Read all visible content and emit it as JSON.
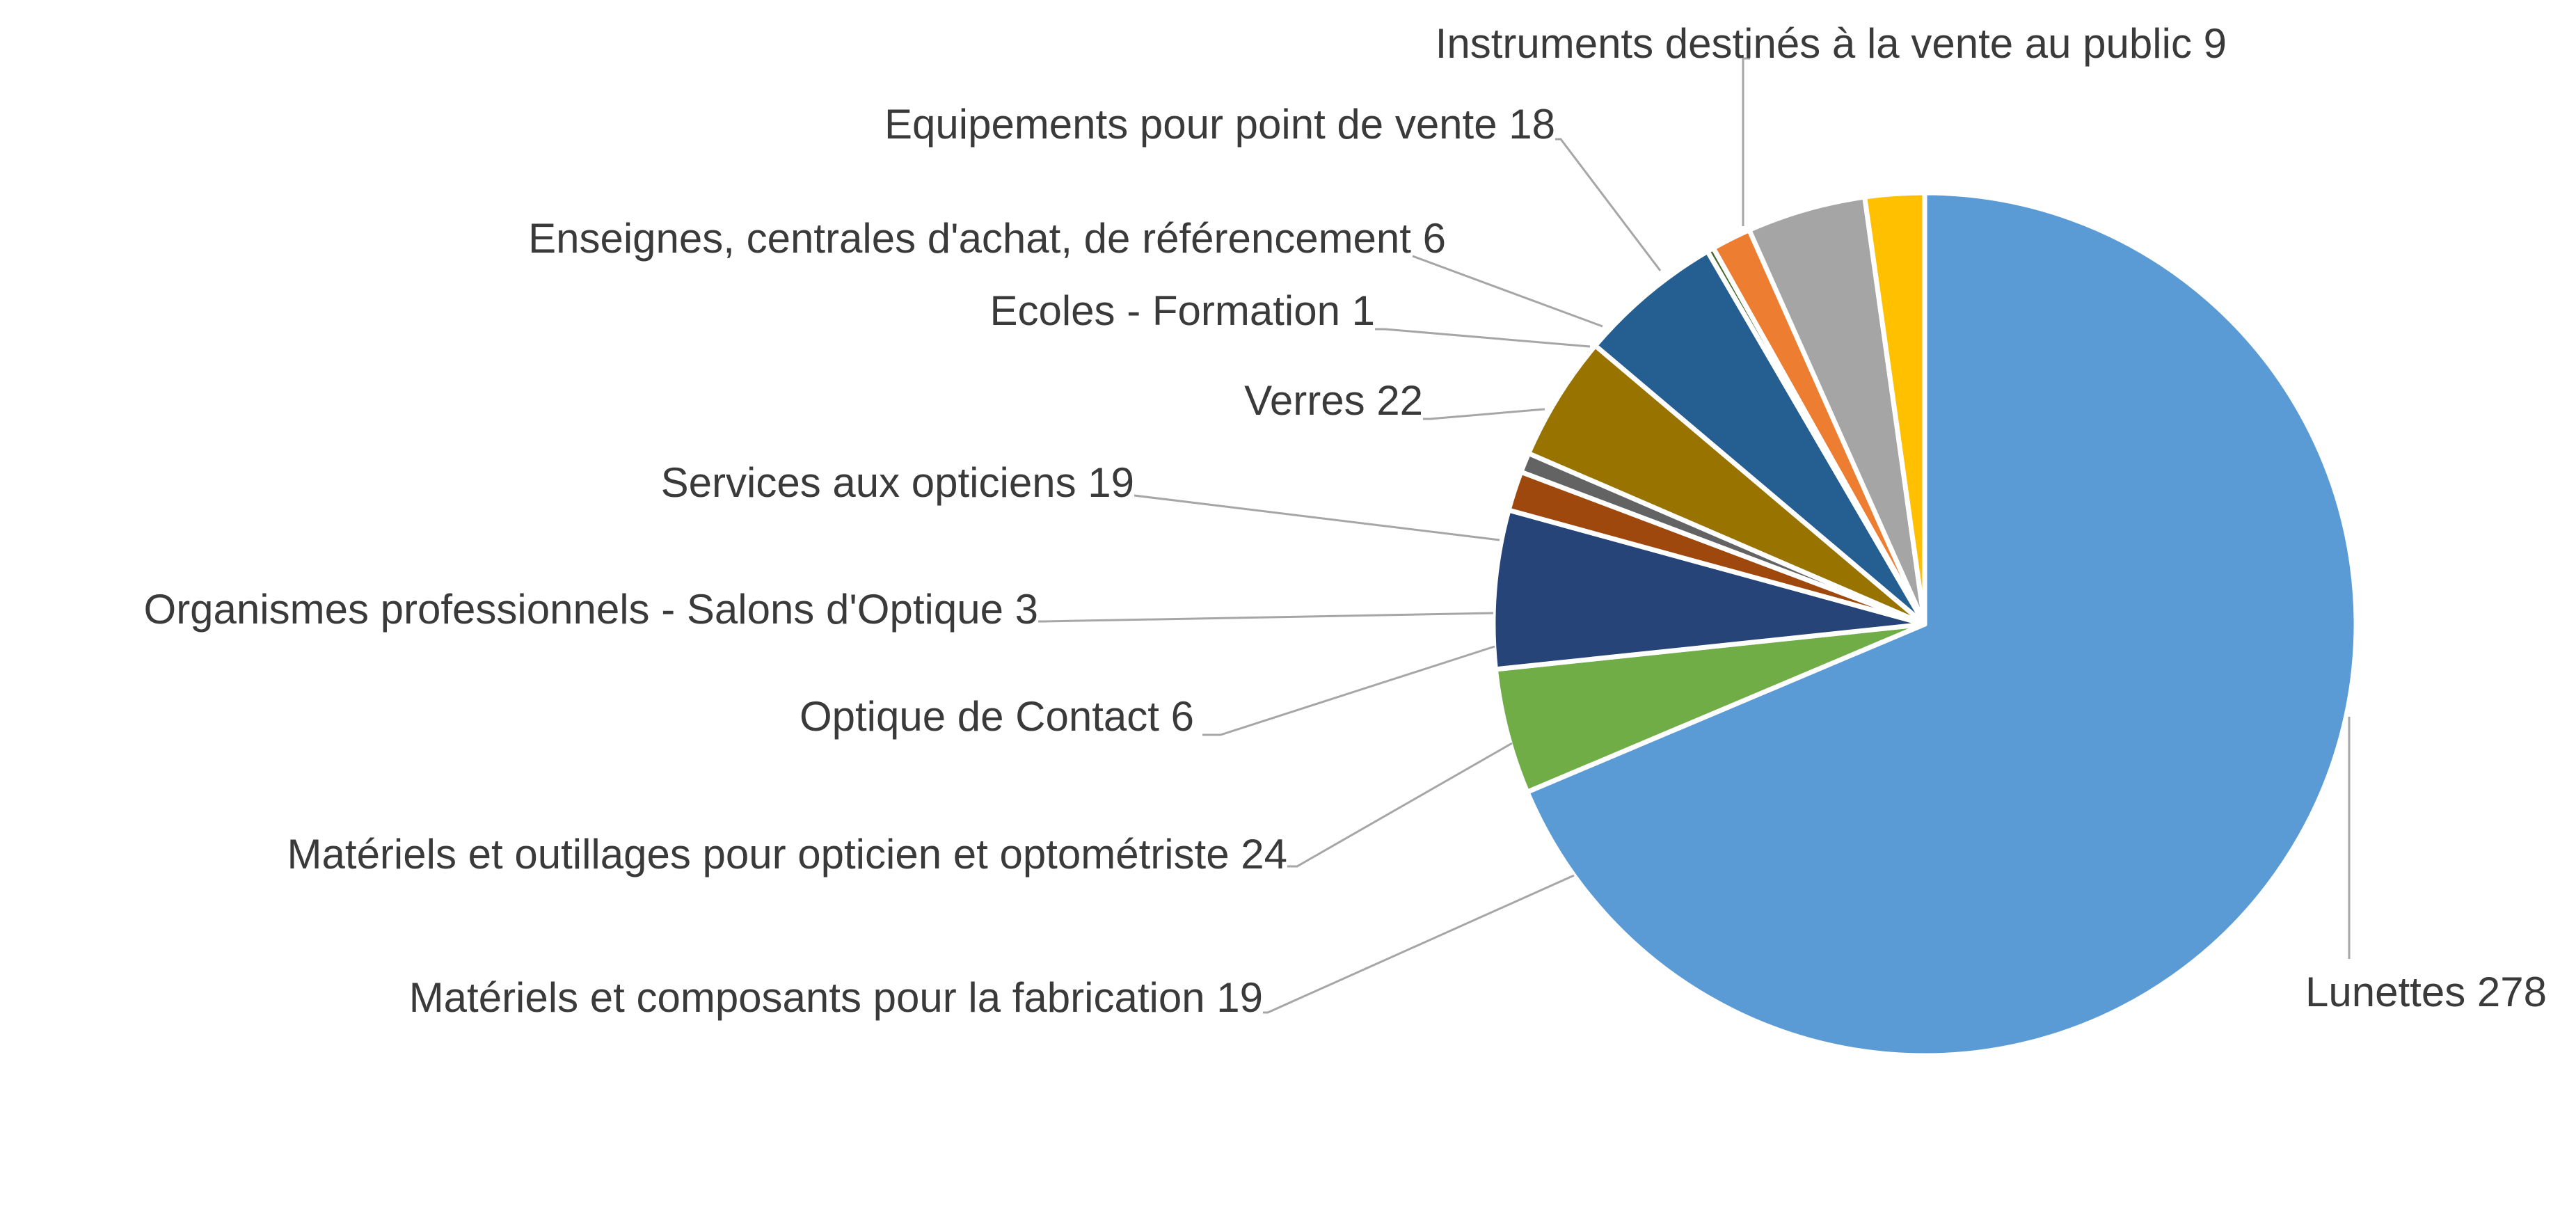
{
  "chart_data": {
    "type": "pie",
    "title": "",
    "start_angle_deg": 0,
    "direction": "clockwise",
    "slices": [
      {
        "label": "Lunettes",
        "value": 278,
        "color": "#5B9BD5"
      },
      {
        "label": "Matériels et composants pour la fabrication",
        "value": 19,
        "color": "#70AD47"
      },
      {
        "label": "Matériels et outillages pour opticien et optométriste",
        "value": 24,
        "color": "#264478"
      },
      {
        "label": "Optique de Contact",
        "value": 6,
        "color": "#9E480E"
      },
      {
        "label": "Organismes professionnels - Salons d'Optique",
        "value": 3,
        "color": "#636363"
      },
      {
        "label": "Services aux opticiens",
        "value": 19,
        "color": "#997300"
      },
      {
        "label": "Verres",
        "value": 22,
        "color": "#255E91"
      },
      {
        "label": "Ecoles - Formation",
        "value": 1,
        "color": "#43682B"
      },
      {
        "label": "Enseignes, centrales d'achat, de référencement",
        "value": 6,
        "color": "#ED7D31"
      },
      {
        "label": "Equipements pour point de vente",
        "value": 18,
        "color": "#A5A5A5"
      },
      {
        "label": "Instruments destinés à la vente au public",
        "value": 9,
        "color": "#FFC000"
      }
    ]
  }
}
